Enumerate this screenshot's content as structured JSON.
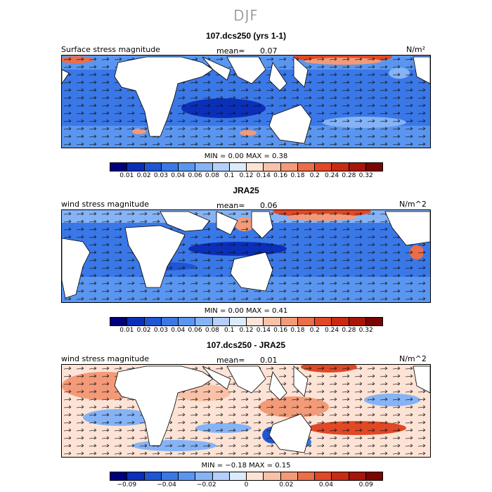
{
  "figure": {
    "title": "DJF"
  },
  "panels": [
    {
      "title": "107.dcs250 (yrs 1-1)",
      "left_label": "Surface stress magnitude",
      "mean_label": "mean=",
      "mean_value": "0.07",
      "units": "N/m²",
      "minmax": "MIN =   0.00  MAX =    0.38",
      "palette": "sequential",
      "ticks": [
        "0.01",
        "0.02",
        "0.03",
        "0.04",
        "0.06",
        "0.08",
        "0.1",
        "0.12",
        "0.14",
        "0.16",
        "0.18",
        "0.2",
        "0.24",
        "0.28",
        "0.32"
      ]
    },
    {
      "title": "JRA25",
      "left_label": "wind stress magnitude",
      "mean_label": "mean=",
      "mean_value": "0.06",
      "units": "N/m^2",
      "minmax": "MIN =   0.00  MAX =    0.41",
      "palette": "sequential",
      "ticks": [
        "0.01",
        "0.02",
        "0.03",
        "0.04",
        "0.06",
        "0.08",
        "0.1",
        "0.12",
        "0.14",
        "0.16",
        "0.18",
        "0.2",
        "0.24",
        "0.28",
        "0.32"
      ]
    },
    {
      "title": "107.dcs250 - JRA25",
      "left_label": "wind stress magnitude",
      "mean_label": "mean=",
      "mean_value": "0.01",
      "units": "N/m^2",
      "minmax": "MIN = −0.18  MAX =    0.15",
      "palette": "diverging",
      "ticks": [
        "−0.09",
        "−0.04",
        "−0.02",
        "0",
        "0.02",
        "0.04",
        "0.09"
      ]
    }
  ],
  "colors": {
    "sequential": [
      "#00007d",
      "#0b2fb8",
      "#1f56d6",
      "#3a78e8",
      "#5a96f0",
      "#86b3f5",
      "#b4d0fa",
      "#dcebfc",
      "#fde3d5",
      "#f9c2a8",
      "#f39a78",
      "#ec6d48",
      "#e04826",
      "#c92a12",
      "#a8150a",
      "#7a0503"
    ],
    "diverging": [
      "#00007d",
      "#0b2fb8",
      "#1f56d6",
      "#3a78e8",
      "#5a96f0",
      "#86b3f5",
      "#b4d0fa",
      "#dcebfc",
      "#fde3d5",
      "#f9c2a8",
      "#f39a78",
      "#ec6d48",
      "#e04826",
      "#c92a12",
      "#a8150a",
      "#7a0503"
    ],
    "land": "#ffffff",
    "coast": "#000000"
  }
}
